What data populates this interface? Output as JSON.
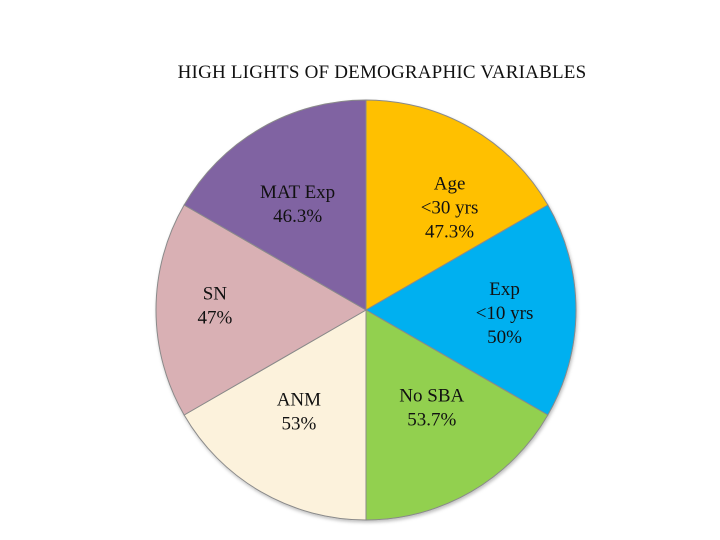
{
  "chart_data": {
    "type": "pie",
    "title": "HIGH LIGHTS OF DEMOGRAPHIC VARIABLES",
    "slices": [
      {
        "lines": [
          "Age",
          "<30 yrs",
          "47.3%"
        ],
        "value": 47.3,
        "color": "#FFC000"
      },
      {
        "lines": [
          "Exp",
          "<10 yrs",
          "50%"
        ],
        "value": 50,
        "color": "#00B0F0"
      },
      {
        "lines": [
          "No  SBA",
          "53.7%"
        ],
        "value": 53.7,
        "color": "#92D050"
      },
      {
        "lines": [
          "ANM",
          "53%"
        ],
        "value": 53,
        "color": "#FCF2DC"
      },
      {
        "lines": [
          "SN",
          "47%"
        ],
        "value": 47,
        "color": "#D9B0B4"
      },
      {
        "lines": [
          "MAT Exp",
          "46.3%"
        ],
        "value": 46.3,
        "color": "#8064A2"
      }
    ]
  }
}
